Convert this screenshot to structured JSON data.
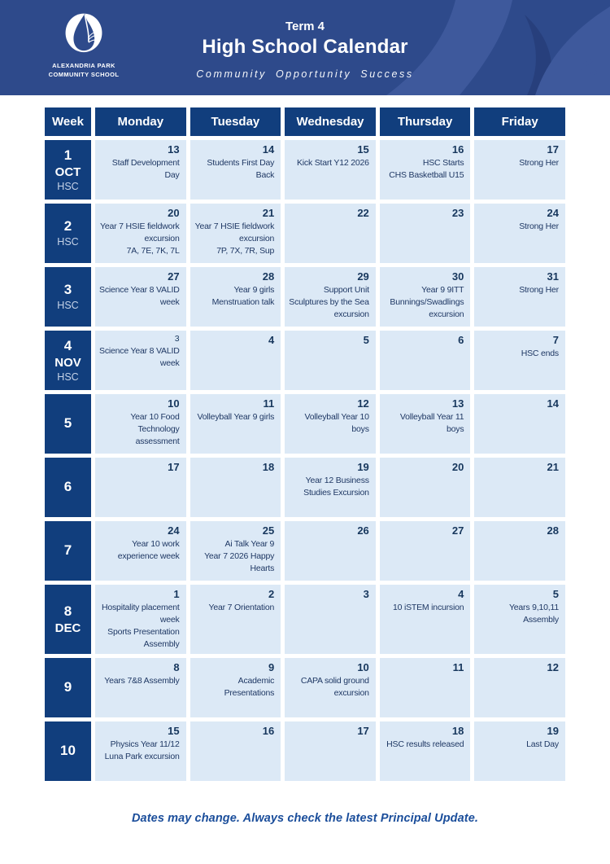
{
  "colors": {
    "banner": "#2e4a8b",
    "leaf_light": "#3e599c",
    "leaf_dark": "#273f7c",
    "navy": "#113e7d",
    "day_bg": "#dce9f6",
    "date_text": "#17375d",
    "event_text": "#1f3864",
    "tag_text": "#c6d3e8",
    "footer_text": "#1b4e9b"
  },
  "header": {
    "logo": {
      "line1": "ALEXANDRIA PARK",
      "line2": "COMMUNITY SCHOOL"
    },
    "term": "Term 4",
    "title": "High School Calendar",
    "motto": "Community Opportunity Success"
  },
  "table": {
    "columns": [
      "Week",
      "Monday",
      "Tuesday",
      "Wednesday",
      "Thursday",
      "Friday"
    ],
    "weeks": [
      {
        "week": "1",
        "month": "OCT",
        "tag": "HSC",
        "days": [
          {
            "date": "13",
            "events": [
              "Staff Development",
              "Day"
            ]
          },
          {
            "date": "14",
            "events": [
              "Students First Day",
              "Back"
            ]
          },
          {
            "date": "15",
            "events": [
              "Kick Start Y12 2026"
            ]
          },
          {
            "date": "16",
            "events": [
              "HSC Starts",
              "CHS Basketball U15"
            ]
          },
          {
            "date": "17",
            "events": [
              "Strong Her"
            ]
          }
        ]
      },
      {
        "week": "2",
        "tag": "HSC",
        "days": [
          {
            "date": "20",
            "events": [
              "Year 7 HSIE fieldwork",
              "excursion",
              "7A, 7E, 7K, 7L"
            ]
          },
          {
            "date": "21",
            "events": [
              "Year 7 HSIE fieldwork",
              "excursion",
              "7P, 7X, 7R, Sup"
            ]
          },
          {
            "date": "22",
            "events": []
          },
          {
            "date": "23",
            "events": []
          },
          {
            "date": "24",
            "events": [
              "Strong Her"
            ]
          }
        ]
      },
      {
        "week": "3",
        "tag": "HSC",
        "days": [
          {
            "date": "27",
            "events": [
              "Science Year 8 VALID",
              "week"
            ]
          },
          {
            "date": "28",
            "events": [
              "Year 9 girls",
              "Menstruation talk"
            ]
          },
          {
            "date": "29",
            "events": [
              "Support Unit",
              "Sculptures by the Sea",
              "excursion"
            ]
          },
          {
            "date": "30",
            "events": [
              "Year 9 9ITT",
              "Bunnings/Swadlings",
              "excursion"
            ]
          },
          {
            "date": "31",
            "events": [
              "Strong Her"
            ]
          }
        ]
      },
      {
        "week": "4",
        "month": "NOV",
        "tag": "HSC",
        "days": [
          {
            "date": "3",
            "date_small": true,
            "events": [
              "Science Year 8 VALID",
              "week"
            ]
          },
          {
            "date": "4",
            "events": []
          },
          {
            "date": "5",
            "events": []
          },
          {
            "date": "6",
            "events": []
          },
          {
            "date": "7",
            "events": [
              "HSC ends"
            ]
          }
        ]
      },
      {
        "week": "5",
        "days": [
          {
            "date": "10",
            "events": [
              "Year 10 Food",
              "Technology",
              "assessment"
            ]
          },
          {
            "date": "11",
            "events": [
              "Volleyball Year 9 girls"
            ]
          },
          {
            "date": "12",
            "events": [
              "Volleyball Year 10",
              "boys"
            ]
          },
          {
            "date": "13",
            "events": [
              "Volleyball Year 11",
              "boys"
            ]
          },
          {
            "date": "14",
            "events": []
          }
        ]
      },
      {
        "week": "6",
        "days": [
          {
            "date": "17",
            "events": []
          },
          {
            "date": "18",
            "events": []
          },
          {
            "date": "19",
            "events": [
              "Year 12 Business",
              "Studies Excursion"
            ]
          },
          {
            "date": "20",
            "events": []
          },
          {
            "date": "21",
            "events": []
          }
        ]
      },
      {
        "week": "7",
        "days": [
          {
            "date": "24",
            "events": [
              "Year 10 work",
              "experience week"
            ]
          },
          {
            "date": "25",
            "events": [
              "Ai Talk Year 9",
              "Year 7 2026 Happy",
              "Hearts"
            ]
          },
          {
            "date": "26",
            "events": []
          },
          {
            "date": "27",
            "events": []
          },
          {
            "date": "28",
            "events": []
          }
        ]
      },
      {
        "week": "8",
        "month": "DEC",
        "days": [
          {
            "date": "1",
            "events": [
              "Hospitality placement",
              "week",
              "Sports Presentation",
              "Assembly"
            ]
          },
          {
            "date": "2",
            "events": [
              "Year 7 Orientation"
            ]
          },
          {
            "date": "3",
            "events": []
          },
          {
            "date": "4",
            "events": [
              "10 iSTEM incursion"
            ]
          },
          {
            "date": "5",
            "events": [
              "Years 9,10,11",
              "Assembly"
            ]
          }
        ]
      },
      {
        "week": "9",
        "days": [
          {
            "date": "8",
            "events": [
              "Years 7&8 Assembly"
            ]
          },
          {
            "date": "9",
            "events": [
              "Academic",
              "Presentations"
            ]
          },
          {
            "date": "10",
            "events": [
              "CAPA solid ground",
              "excursion"
            ]
          },
          {
            "date": "11",
            "events": []
          },
          {
            "date": "12",
            "events": []
          }
        ]
      },
      {
        "week": "10",
        "days": [
          {
            "date": "15",
            "events": [
              "Physics Year 11/12",
              "Luna Park excursion"
            ]
          },
          {
            "date": "16",
            "events": []
          },
          {
            "date": "17",
            "events": []
          },
          {
            "date": "18",
            "events": [
              "HSC results released"
            ]
          },
          {
            "date": "19",
            "events": [
              "Last Day"
            ]
          }
        ]
      }
    ]
  },
  "footer": {
    "note": "Dates may change. Always check the latest Principal Update."
  }
}
